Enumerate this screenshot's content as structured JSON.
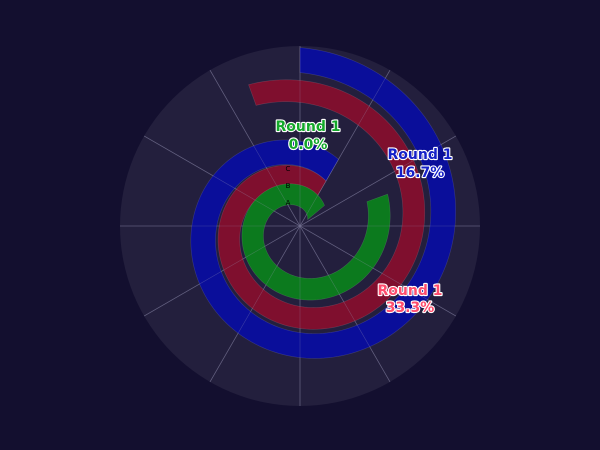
{
  "chart_data": {
    "type": "radial-spiral-bar",
    "title": "",
    "background_color": "#130f2f",
    "plot_background_color": "#231f3d",
    "grid_color": "#4a4766",
    "grid": true,
    "radial_ticks": [
      "A",
      "B",
      "C"
    ],
    "series": [
      {
        "name": "Round 1",
        "value_label": "33.3%",
        "fill_color": "#7f0f2e",
        "label_color": "#ff4d6d",
        "label_stroke": "#ffffff"
      },
      {
        "name": "Round 1",
        "value_label": "16.7%",
        "fill_color": "#0a0e9a",
        "label_color": "#1520c8",
        "label_stroke": "#ffffff"
      },
      {
        "name": "Round 1",
        "value_label": "0.0%",
        "fill_color": "#0c7a1e",
        "label_color": "#14a82a",
        "label_stroke": "#ffffff"
      }
    ]
  }
}
